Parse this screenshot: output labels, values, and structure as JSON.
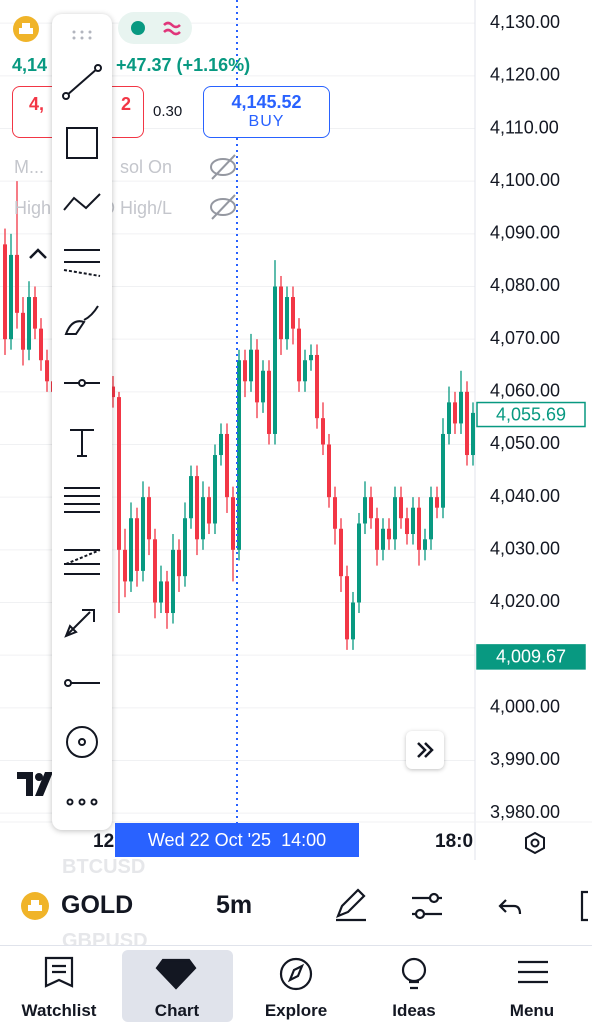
{
  "header": {
    "symbol_price": "4,14",
    "change": "+47.37 (+1.16%)",
    "sell_left": "4,",
    "sell_right": "2",
    "spread": "0.30",
    "buy_price": "4,145.52",
    "buy_label": "BUY",
    "indicator_1_left": "M...",
    "indicator_1_right": "sol On",
    "indicator_2_left": "High",
    "indicator_2_right": "D High/L"
  },
  "chart_data": {
    "type": "candlestick",
    "open": [
      4088,
      4070,
      4086,
      4075,
      4068,
      4078,
      4072,
      4066,
      4062,
      4060,
      4064,
      4058,
      4062,
      4055,
      4060,
      4057,
      4063,
      4058,
      4061,
      4059,
      4030,
      4024,
      4036,
      4026,
      4040,
      4032,
      4020,
      4024,
      4018,
      4030,
      4025,
      4036,
      4044,
      4032,
      4040,
      4035,
      4048,
      4052,
      4040,
      4030,
      4066,
      4062,
      4068,
      4058,
      4064,
      4052,
      4080,
      4070,
      4078,
      4072,
      4062,
      4066,
      4067,
      4055,
      4050,
      4040,
      4034,
      4025,
      4013,
      4020,
      4035,
      4040,
      4036,
      4030,
      4034,
      4032,
      4040,
      4036,
      4033,
      4038,
      4030,
      4032,
      4040,
      4038,
      4052,
      4058,
      4054,
      4060,
      4048
    ],
    "high": [
      4091,
      4090,
      4100,
      4078,
      4081,
      4080,
      4074,
      4068,
      4064,
      4066,
      4066,
      4064,
      4064,
      4062,
      4062,
      4065,
      4065,
      4063,
      4063,
      4060,
      4034,
      4039,
      4038,
      4043,
      4042,
      4034,
      4027,
      4026,
      4033,
      4032,
      4039,
      4046,
      4046,
      4043,
      4042,
      4050,
      4054,
      4054,
      4042,
      4068,
      4068,
      4071,
      4070,
      4066,
      4066,
      4085,
      4082,
      4080,
      4080,
      4074,
      4068,
      4069,
      4069,
      4058,
      4052,
      4042,
      4036,
      4027,
      4022,
      4037,
      4043,
      4042,
      4038,
      4036,
      4036,
      4042,
      4042,
      4038,
      4040,
      4040,
      4034,
      4042,
      4042,
      4055,
      4061,
      4060,
      4064,
      4062,
      4058
    ],
    "low": [
      4067,
      4068,
      4072,
      4065,
      4066,
      4070,
      4064,
      4060,
      4058,
      4058,
      4056,
      4056,
      4053,
      4053,
      4055,
      4055,
      4056,
      4056,
      4057,
      4018,
      4021,
      4022,
      4023,
      4024,
      4029,
      4017,
      4018,
      4015,
      4016,
      4022,
      4023,
      4034,
      4029,
      4030,
      4033,
      4033,
      4046,
      4037,
      4024,
      4028,
      4059,
      4060,
      4055,
      4056,
      4050,
      4050,
      4067,
      4068,
      4069,
      4060,
      4060,
      4064,
      4053,
      4048,
      4038,
      4031,
      4022,
      4011,
      4011,
      4018,
      4033,
      4034,
      4027,
      4028,
      4030,
      4030,
      4034,
      4031,
      4031,
      4027,
      4028,
      4030,
      4036,
      4036,
      4050,
      4052,
      4052,
      4046,
      4046
    ],
    "close": [
      4070,
      4086,
      4075,
      4068,
      4078,
      4072,
      4066,
      4062,
      4060,
      4064,
      4058,
      4062,
      4055,
      4060,
      4057,
      4063,
      4058,
      4061,
      4059,
      4030,
      4024,
      4036,
      4026,
      4040,
      4032,
      4020,
      4024,
      4018,
      4030,
      4025,
      4036,
      4044,
      4032,
      4040,
      4035,
      4048,
      4052,
      4040,
      4030,
      4066,
      4062,
      4068,
      4058,
      4064,
      4052,
      4080,
      4070,
      4078,
      4072,
      4062,
      4066,
      4067,
      4055,
      4050,
      4040,
      4034,
      4025,
      4013,
      4020,
      4035,
      4040,
      4036,
      4030,
      4034,
      4032,
      4040,
      4036,
      4033,
      4038,
      4030,
      4032,
      4040,
      4038,
      4052,
      4058,
      4054,
      4060,
      4048,
      4056
    ],
    "up_color": "#089981",
    "down_color": "#f23645",
    "ylim": [
      3978.7,
      4134.4
    ],
    "yticks": [
      {
        "value": 4130,
        "label": "4,130.00"
      },
      {
        "value": 4120,
        "label": "4,120.00"
      },
      {
        "value": 4110,
        "label": "4,110.00"
      },
      {
        "value": 4100,
        "label": "4,100.00"
      },
      {
        "value": 4090,
        "label": "4,090.00"
      },
      {
        "value": 4080,
        "label": "4,080.00"
      },
      {
        "value": 4070,
        "label": "4,070.00"
      },
      {
        "value": 4060,
        "label": "4,060.00"
      },
      {
        "value": 4050,
        "label": "4,050.00"
      },
      {
        "value": 4040,
        "label": "4,040.00"
      },
      {
        "value": 4030,
        "label": "4,030.00"
      },
      {
        "value": 4020,
        "label": "4,020.00"
      },
      {
        "value": 4010,
        "label": "4,010.00"
      },
      {
        "value": 4000,
        "label": "4,000.00"
      },
      {
        "value": 3990,
        "label": "3,990.00"
      },
      {
        "value": 3980,
        "label": "3,980.00"
      }
    ],
    "grid": true,
    "price_tags": [
      {
        "value": 4055.69,
        "label": "4,055.69",
        "style": "outline"
      },
      {
        "value": 4009.67,
        "label": "4,009.67",
        "style": "filled"
      }
    ],
    "x_labels": [
      "12",
      "18:0"
    ],
    "crosshair_label": "Wed 22 Oct '25  14:00"
  },
  "bottom_bar": {
    "symbol": "GOLD",
    "interval": "5m",
    "prev_symbol": "BTCUSD",
    "next_symbol": "GBPUSD"
  },
  "nav": [
    "Watchlist",
    "Chart",
    "Explore",
    "Ideas",
    "Menu"
  ]
}
